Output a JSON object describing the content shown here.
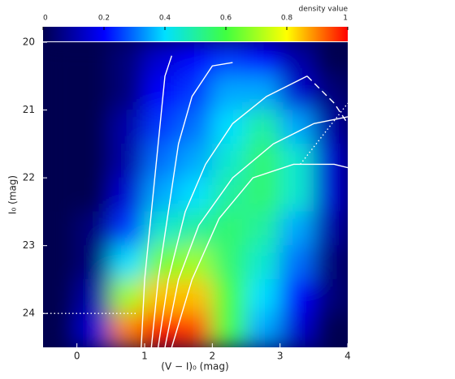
{
  "chart_data": {
    "type": "heatmap",
    "xlabel": "(V − I)₀ (mag)",
    "ylabel": "I₀ (mag)",
    "colorbar_label": "density value",
    "xlim": [
      -0.5,
      4
    ],
    "xticks": [
      0,
      1,
      2,
      3,
      4
    ],
    "ylim": [
      24.5,
      20
    ],
    "yticks": [
      20,
      21,
      22,
      23,
      24
    ],
    "clim": [
      0,
      1
    ],
    "cticks": [
      0,
      0.2,
      0.4,
      0.6,
      0.8,
      1
    ],
    "colormap": [
      [
        0,
        "#000050"
      ],
      [
        0.2,
        "#0000ff"
      ],
      [
        0.4,
        "#00e0ff"
      ],
      [
        0.6,
        "#40ff40"
      ],
      [
        0.8,
        "#ffff00"
      ],
      [
        0.9,
        "#ff8000"
      ],
      [
        1,
        "#ff0000"
      ]
    ],
    "x_bins": [
      -0.5,
      0,
      0.5,
      1,
      1.5,
      2,
      2.5,
      3,
      3.5,
      4
    ],
    "y_bins": [
      20,
      20.5,
      21,
      21.5,
      22,
      22.5,
      23,
      23.5,
      24,
      24.5
    ],
    "z": [
      [
        0,
        0,
        0.05,
        0.15,
        0.2,
        0.25,
        0.2,
        0.1,
        0
      ],
      [
        0,
        0,
        0.05,
        0.2,
        0.25,
        0.35,
        0.35,
        0.15,
        0.05
      ],
      [
        0,
        0,
        0.1,
        0.25,
        0.3,
        0.4,
        0.5,
        0.35,
        0.1
      ],
      [
        0,
        0,
        0.1,
        0.3,
        0.35,
        0.45,
        0.55,
        0.45,
        0.15
      ],
      [
        0,
        0,
        0.15,
        0.35,
        0.4,
        0.5,
        0.55,
        0.45,
        0.15
      ],
      [
        0,
        0.05,
        0.25,
        0.45,
        0.5,
        0.55,
        0.5,
        0.35,
        0.1
      ],
      [
        0,
        0.05,
        0.4,
        0.65,
        0.7,
        0.55,
        0.45,
        0.3,
        0.05
      ],
      [
        0,
        0.1,
        0.7,
        0.85,
        0.85,
        0.6,
        0.4,
        0.2,
        0.05
      ],
      [
        0,
        0.15,
        0.9,
        1,
        0.95,
        0.6,
        0.35,
        0.15,
        0
      ]
    ],
    "lines": [
      {
        "style": "solid",
        "x": [
          0.95,
          1.0,
          1.1,
          1.2,
          1.3,
          1.4
        ],
        "y": [
          24.5,
          23.5,
          22.5,
          21.5,
          20.5,
          20.2
        ]
      },
      {
        "style": "solid",
        "x": [
          1.1,
          1.2,
          1.35,
          1.5,
          1.7,
          2.0,
          2.3
        ],
        "y": [
          24.5,
          23.5,
          22.5,
          21.5,
          20.8,
          20.35,
          20.3
        ]
      },
      {
        "style": "solid",
        "x": [
          1.2,
          1.35,
          1.6,
          1.9,
          2.3,
          2.8,
          3.4
        ],
        "y": [
          24.5,
          23.5,
          22.5,
          21.8,
          21.2,
          20.8,
          20.5
        ]
      },
      {
        "style": "solid",
        "x": [
          1.3,
          1.5,
          1.8,
          2.3,
          2.9,
          3.5,
          4.0
        ],
        "y": [
          24.5,
          23.5,
          22.7,
          22.0,
          21.5,
          21.2,
          21.1
        ]
      },
      {
        "style": "solid",
        "x": [
          1.4,
          1.7,
          2.1,
          2.6,
          3.2,
          3.8,
          4.0
        ],
        "y": [
          24.5,
          23.5,
          22.6,
          22.0,
          21.8,
          21.8,
          21.85
        ]
      },
      {
        "style": "dashed",
        "x": [
          3.4,
          3.8,
          4.0
        ],
        "y": [
          20.5,
          20.9,
          21.2
        ]
      },
      {
        "style": "dotted",
        "x": [
          -0.5,
          0.9
        ],
        "y": [
          24.0,
          24.0
        ]
      },
      {
        "style": "dotted",
        "x": [
          3.3,
          4.0
        ],
        "y": [
          21.8,
          20.9
        ]
      }
    ]
  }
}
